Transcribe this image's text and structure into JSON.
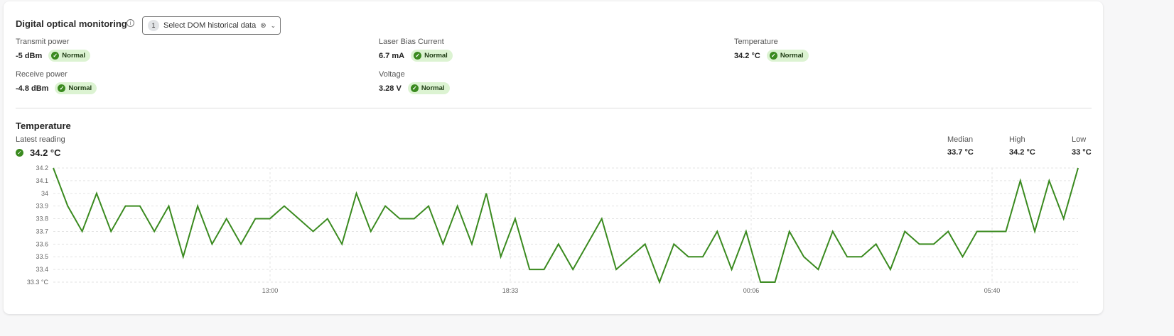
{
  "header": {
    "title": "Digital optical monitoring",
    "info_icon": "info-icon",
    "select": {
      "count": "1",
      "label": "Select DOM historical data",
      "clear_icon": "clear-circle-icon",
      "chevron_icon": "chevron-down-icon"
    }
  },
  "metrics": [
    {
      "label": "Transmit power",
      "value": "-5 dBm",
      "status": "Normal"
    },
    {
      "label": "Laser Bias Current",
      "value": "6.7 mA",
      "status": "Normal"
    },
    {
      "label": "Temperature",
      "value": "34.2 °C",
      "status": "Normal"
    },
    {
      "label": "Receive power",
      "value": "-4.8 dBm",
      "status": "Normal"
    },
    {
      "label": "Voltage",
      "value": "3.28 V",
      "status": "Normal"
    }
  ],
  "colors": {
    "accent": "#3a8a1f",
    "badge_bg": "#dcf3d2"
  },
  "temperature": {
    "title": "Temperature",
    "latest_label": "Latest reading",
    "latest_value": "34.2 °C",
    "stats": [
      {
        "label": "Median",
        "value": "33.7 °C"
      },
      {
        "label": "High",
        "value": "34.2 °C"
      },
      {
        "label": "Low",
        "value": "33 °C"
      }
    ]
  },
  "chart_data": {
    "type": "line",
    "ylim": [
      33.3,
      34.2
    ],
    "yticks": [
      "34.2",
      "34.1",
      "34",
      "33.9",
      "33.8",
      "33.7",
      "33.6",
      "33.5",
      "33.4",
      "33.3 °C"
    ],
    "ytick_values": [
      34.2,
      34.1,
      34.0,
      33.9,
      33.8,
      33.7,
      33.6,
      33.5,
      33.4,
      33.3
    ],
    "xticks": [
      "13:00",
      "18:33",
      "00:06",
      "05:40"
    ],
    "xtick_positions": [
      15,
      31.6,
      48.2,
      64.8
    ],
    "grid": true,
    "color": "#3a8a1f",
    "values": [
      34.2,
      33.9,
      33.7,
      34.0,
      33.7,
      33.9,
      33.9,
      33.7,
      33.9,
      33.5,
      33.9,
      33.6,
      33.8,
      33.6,
      33.8,
      33.8,
      33.9,
      33.8,
      33.7,
      33.8,
      33.6,
      34.0,
      33.7,
      33.9,
      33.8,
      33.8,
      33.9,
      33.6,
      33.9,
      33.6,
      34.0,
      33.5,
      33.8,
      33.4,
      33.4,
      33.6,
      33.4,
      33.6,
      33.8,
      33.4,
      33.5,
      33.6,
      33.3,
      33.6,
      33.5,
      33.5,
      33.7,
      33.4,
      33.7,
      33.3,
      33.3,
      33.7,
      33.5,
      33.4,
      33.7,
      33.5,
      33.5,
      33.6,
      33.4,
      33.7,
      33.6,
      33.6,
      33.7,
      33.5,
      33.7,
      33.7,
      33.7,
      34.1,
      33.7,
      34.1,
      33.8,
      34.2
    ]
  }
}
